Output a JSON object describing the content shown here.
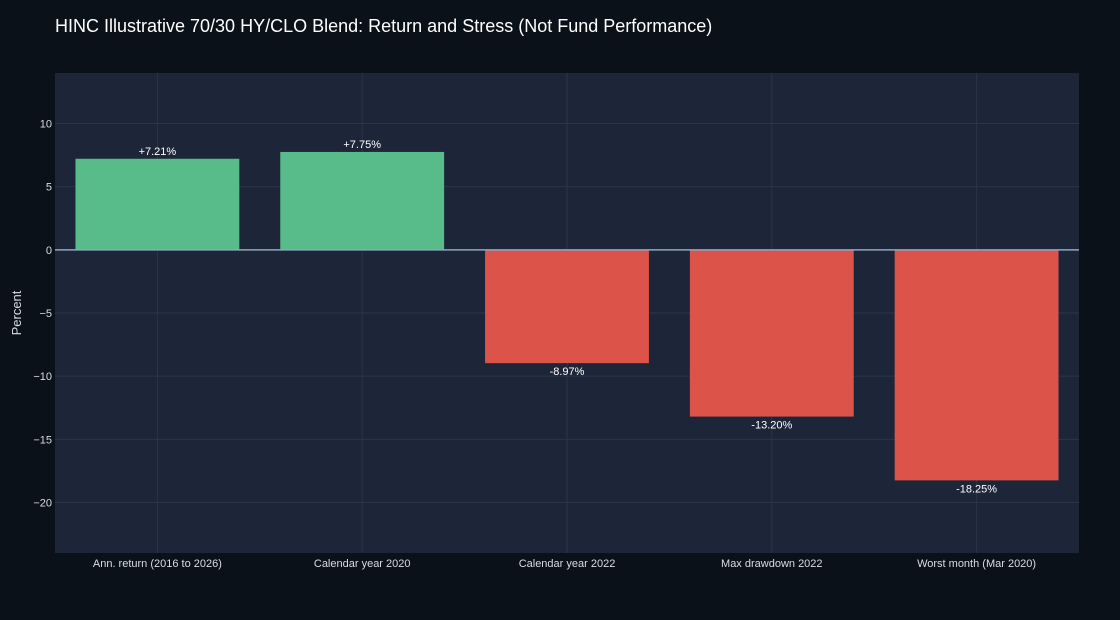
{
  "chart_data": {
    "type": "bar",
    "title": "HINC Illustrative 70/30 HY/CLO Blend: Return and Stress (Not Fund Performance)",
    "xlabel": "",
    "ylabel": "Percent",
    "categories": [
      "Ann. return (2016 to 2026)",
      "Calendar year 2020",
      "Calendar year 2022",
      "Max drawdown 2022",
      "Worst month (Mar 2020)"
    ],
    "values": [
      7.21,
      7.75,
      -8.97,
      -13.2,
      -18.25
    ],
    "data_labels": [
      "+7.21%",
      "+7.75%",
      "-8.97%",
      "-13.20%",
      "-18.25%"
    ],
    "ylim": [
      -24,
      14
    ],
    "y_ticks": [
      10,
      5,
      0,
      -5,
      -10,
      -15,
      -20
    ],
    "y_tick_labels": [
      "10",
      "5",
      "0",
      "−5",
      "−10",
      "−15",
      "−20"
    ],
    "grid": true,
    "legend": false,
    "colors": {
      "positive": "#57bb8a",
      "negative": "#dc5449",
      "plot_background": "#1d2638",
      "page_background": "#0b1118",
      "zero_line": "#8fa6c4",
      "grid": "#2b3548"
    }
  }
}
